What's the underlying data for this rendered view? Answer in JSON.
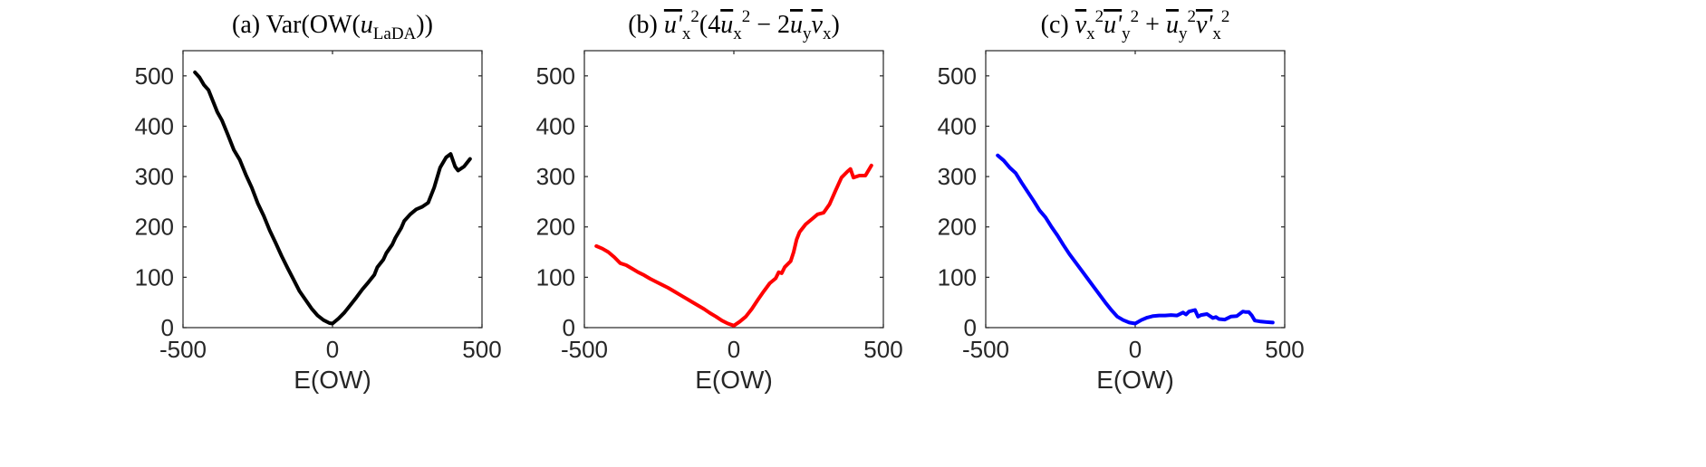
{
  "chart_data": [
    {
      "type": "line",
      "title_parts": [
        "(a) Var(OW(",
        "u",
        "LaDA",
        "))"
      ],
      "xlabel": "E(OW)",
      "xlim": [
        -500,
        500
      ],
      "ylim": [
        0,
        550
      ],
      "xticks": [
        "-500",
        "0",
        "500"
      ],
      "yticks": [
        "0",
        "100",
        "200",
        "300",
        "400",
        "500"
      ],
      "color": "#000000",
      "series": [
        {
          "x": [
            -460,
            -445,
            -430,
            -415,
            -400,
            -385,
            -370,
            -350,
            -330,
            -310,
            -290,
            -270,
            -250,
            -230,
            -210,
            -190,
            -170,
            -150,
            -130,
            -110,
            -90,
            -70,
            -50,
            -30,
            -10,
            0,
            20,
            40,
            60,
            80,
            100,
            120,
            140,
            150,
            170,
            180,
            200,
            210,
            230,
            240,
            260,
            280,
            300,
            320,
            340,
            360,
            380,
            395,
            410,
            420,
            440,
            460
          ],
          "y": [
            507,
            497,
            482,
            472,
            450,
            428,
            412,
            383,
            353,
            333,
            304,
            278,
            247,
            222,
            193,
            168,
            142,
            118,
            95,
            72,
            55,
            38,
            24,
            15,
            9,
            8,
            18,
            30,
            45,
            60,
            76,
            90,
            105,
            120,
            135,
            148,
            165,
            178,
            198,
            212,
            225,
            235,
            240,
            248,
            278,
            318,
            338,
            345,
            320,
            312,
            320,
            335
          ]
        }
      ]
    },
    {
      "type": "line",
      "title_parts": [
        "(b) ",
        "u'",
        "x",
        "2",
        "(4",
        "u",
        "x",
        "2",
        " − 2",
        "u",
        "y",
        "v",
        "x",
        ")"
      ],
      "xlabel": "E(OW)",
      "xlim": [
        -500,
        500
      ],
      "ylim": [
        0,
        550
      ],
      "xticks": [
        "-500",
        "0",
        "500"
      ],
      "yticks": [
        "0",
        "100",
        "200",
        "300",
        "400",
        "500"
      ],
      "color": "#ff0000",
      "series": [
        {
          "x": [
            -460,
            -440,
            -420,
            -400,
            -380,
            -360,
            -340,
            -320,
            -300,
            -280,
            -260,
            -240,
            -220,
            -200,
            -180,
            -160,
            -140,
            -120,
            -100,
            -80,
            -60,
            -40,
            -20,
            0,
            20,
            40,
            60,
            80,
            100,
            120,
            140,
            150,
            160,
            170,
            190,
            200,
            210,
            220,
            240,
            260,
            280,
            300,
            320,
            340,
            360,
            380,
            390,
            400,
            420,
            440,
            460
          ],
          "y": [
            162,
            157,
            150,
            140,
            128,
            124,
            117,
            110,
            104,
            97,
            91,
            85,
            79,
            72,
            65,
            58,
            51,
            44,
            37,
            29,
            22,
            14,
            8,
            4,
            12,
            22,
            37,
            55,
            72,
            88,
            98,
            110,
            108,
            120,
            132,
            150,
            175,
            190,
            205,
            215,
            225,
            228,
            245,
            272,
            298,
            310,
            315,
            298,
            302,
            302,
            322
          ]
        }
      ]
    },
    {
      "type": "line",
      "title_parts": [
        "(c) ",
        "v",
        "x",
        "2",
        "u'",
        "y",
        "2",
        " + ",
        "u",
        "y",
        "2",
        "v'",
        "x",
        "2"
      ],
      "xlabel": "E(OW)",
      "xlim": [
        -500,
        500
      ],
      "ylim": [
        0,
        550
      ],
      "xticks": [
        "-500",
        "0",
        "500"
      ],
      "yticks": [
        "0",
        "100",
        "200",
        "300",
        "400",
        "500"
      ],
      "color": "#0000ff",
      "series": [
        {
          "x": [
            -460,
            -440,
            -420,
            -400,
            -380,
            -360,
            -340,
            -320,
            -300,
            -280,
            -260,
            -240,
            -220,
            -200,
            -180,
            -160,
            -140,
            -120,
            -100,
            -80,
            -60,
            -40,
            -20,
            0,
            20,
            40,
            60,
            80,
            100,
            120,
            140,
            160,
            170,
            180,
            200,
            210,
            220,
            240,
            260,
            270,
            280,
            300,
            320,
            340,
            360,
            370,
            380,
            390,
            400,
            420,
            440,
            460
          ],
          "y": [
            342,
            332,
            318,
            307,
            288,
            270,
            252,
            233,
            219,
            200,
            183,
            164,
            146,
            130,
            114,
            98,
            82,
            66,
            50,
            35,
            22,
            15,
            10,
            8,
            15,
            20,
            23,
            24,
            24,
            25,
            24,
            30,
            26,
            32,
            35,
            22,
            25,
            27,
            19,
            21,
            17,
            16,
            22,
            23,
            32,
            31,
            31,
            24,
            14,
            12,
            11,
            10
          ]
        }
      ]
    }
  ]
}
